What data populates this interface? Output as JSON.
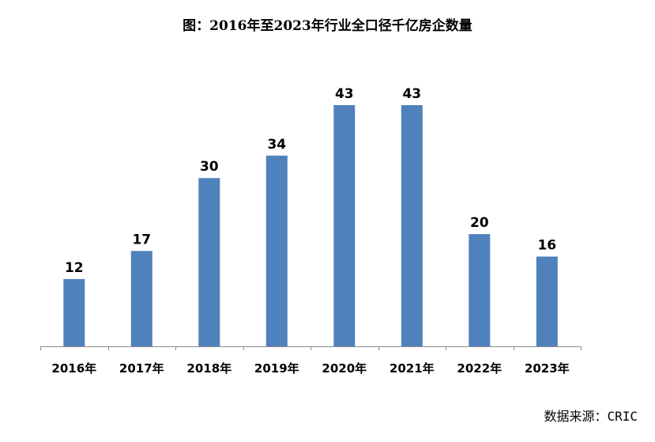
{
  "title": "图：2016年至2023年行业全口径千亿房企数量",
  "source": "数据来源：CRIC",
  "chart_data": {
    "type": "bar",
    "title": "图：2016年至2023年行业全口径千亿房企数量",
    "categories": [
      "2016年",
      "2017年",
      "2018年",
      "2019年",
      "2020年",
      "2021年",
      "2022年",
      "2023年"
    ],
    "values": [
      12,
      17,
      30,
      34,
      43,
      43,
      20,
      16
    ],
    "xlabel": "",
    "ylabel": "",
    "ylim": [
      0,
      50
    ],
    "grid": false,
    "legend": "none",
    "bar_color": "#4F81BD"
  }
}
